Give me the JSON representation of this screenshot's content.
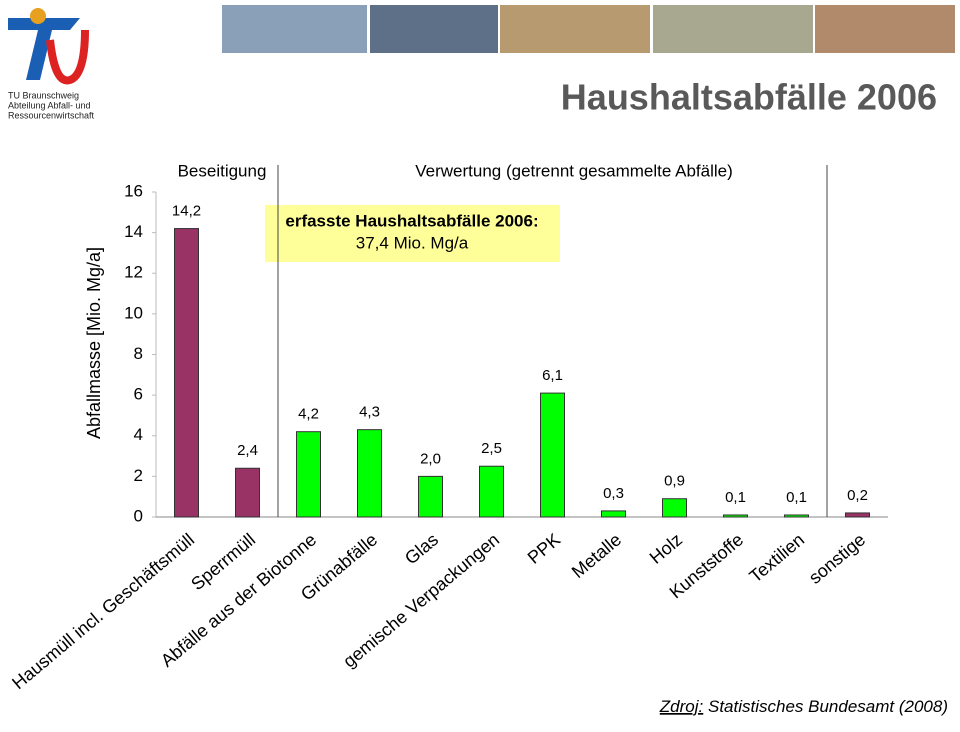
{
  "logo": [
    "TU Braunschweig",
    "Abteilung Abfall- und",
    "Ressourcenwirtschaft"
  ],
  "chart_data": {
    "type": "bar",
    "title": "Haushaltsabfälle 2006",
    "y_label": "Abfallmasse [Mio. Mg/a]",
    "section_labels": [
      "Beseitigung",
      "Verwertung (getrennt gesammelte Abfälle)"
    ],
    "annotation": [
      "erfasste Haushaltsabfälle 2006:",
      "37,4 Mio. Mg/a"
    ],
    "categories": [
      "Hausmüll incl. Geschäftsmüll",
      "Sperrmüll",
      "Abfälle aus der Biotonne",
      "Grünabfälle",
      "Glas",
      "gemische Verpackungen",
      "PPK",
      "Metalle",
      "Holz",
      "Kunststoffe",
      "Textilien",
      "sonstige"
    ],
    "values": [
      14.2,
      2.4,
      4.2,
      4.3,
      2.0,
      2.5,
      6.1,
      0.3,
      0.9,
      0.1,
      0.1,
      0.2
    ],
    "value_labels": [
      "14,2",
      "2,4",
      "4,2",
      "4,3",
      "2,0",
      "2,5",
      "6,1",
      "0,3",
      "0,9",
      "0,1",
      "0,1",
      "0,2"
    ],
    "colors": [
      "#993366",
      "#993366",
      "#00ff00",
      "#00ff00",
      "#00ff00",
      "#00ff00",
      "#00ff00",
      "#00ff00",
      "#00ff00",
      "#00ff00",
      "#00ff00",
      "#993366"
    ],
    "ylim": [
      0,
      16
    ],
    "yticks": [
      0,
      2,
      4,
      6,
      8,
      10,
      12,
      14,
      16
    ],
    "source": {
      "label": "Zdroj:",
      "text": "Statistisches Bundesamt (2008)"
    }
  }
}
